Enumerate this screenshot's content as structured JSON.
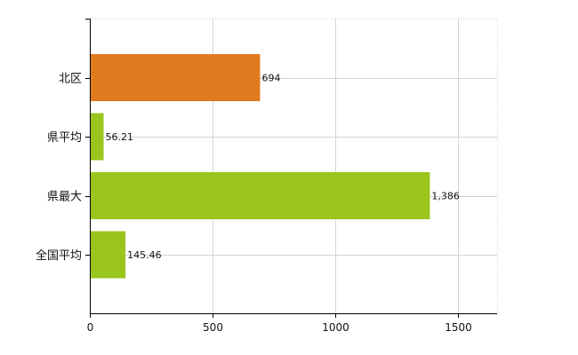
{
  "chart_data": {
    "type": "bar",
    "orientation": "horizontal",
    "categories": [
      "北区",
      "県平均",
      "県最大",
      "全国平均"
    ],
    "values": [
      694,
      56.21,
      1386,
      145.46
    ],
    "value_labels": [
      "694",
      "56.21",
      "1,386",
      "145.46"
    ],
    "colors": [
      "#e07b1f",
      "#99c51c",
      "#99c51c",
      "#99c51c"
    ],
    "xlim": [
      0,
      1660
    ],
    "xticks": [
      0,
      500,
      1000,
      1500
    ],
    "xtick_labels": [
      "0",
      "500",
      "1000",
      "1500"
    ],
    "grid": true,
    "title": "",
    "xlabel": "",
    "ylabel": ""
  }
}
